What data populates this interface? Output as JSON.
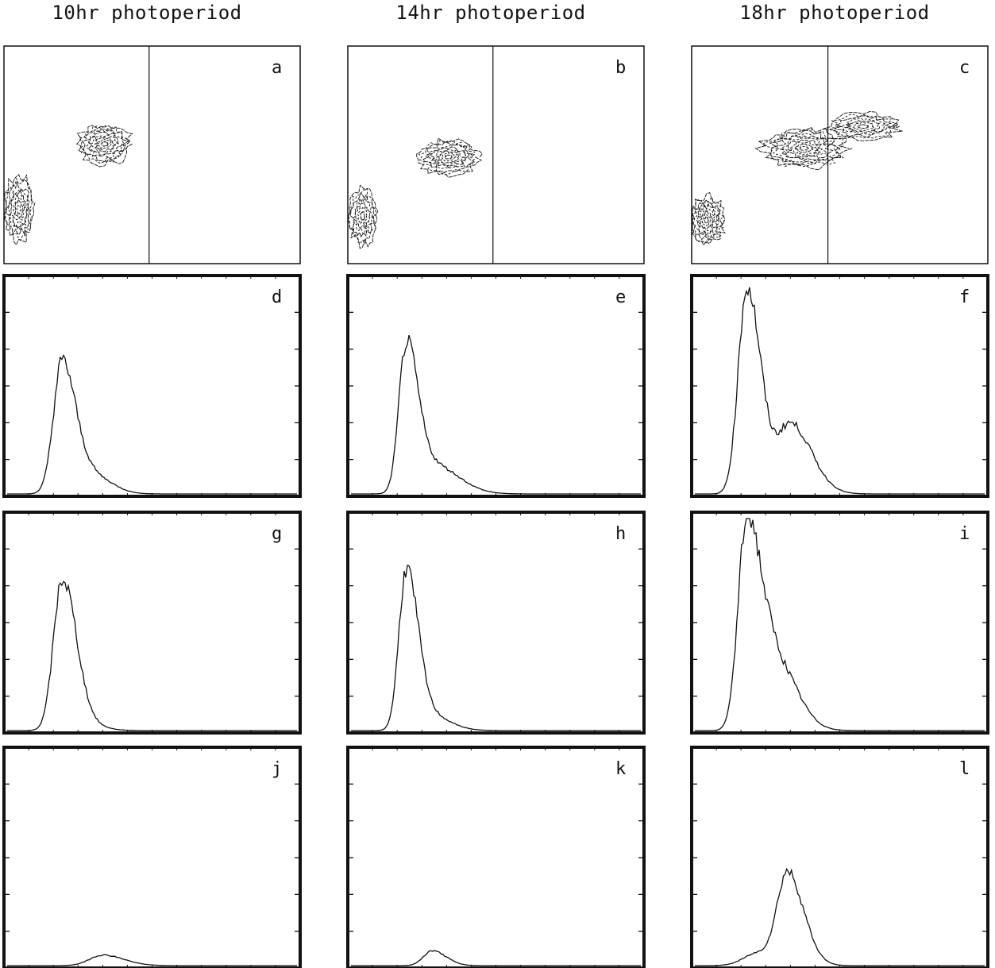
{
  "column_titles": [
    "10hr photoperiod",
    "14hr photoperiod",
    "18hr photoperiod"
  ],
  "chart_data": [
    {
      "type": "contour",
      "panel": "a",
      "title": "",
      "xlabel": "",
      "ylabel": "",
      "gate_x_fraction": 0.49,
      "populations": [
        {
          "cx": 0.05,
          "cy": 0.75,
          "levels": 8,
          "spread_x": 0.05,
          "spread_y": 0.15
        },
        {
          "cx": 0.34,
          "cy": 0.45,
          "levels": 9,
          "spread_x": 0.09,
          "spread_y": 0.09
        }
      ]
    },
    {
      "type": "contour",
      "panel": "b",
      "title": "",
      "xlabel": "",
      "ylabel": "",
      "gate_x_fraction": 0.49,
      "populations": [
        {
          "cx": 0.05,
          "cy": 0.78,
          "levels": 7,
          "spread_x": 0.05,
          "spread_y": 0.13
        },
        {
          "cx": 0.34,
          "cy": 0.51,
          "levels": 9,
          "spread_x": 0.1,
          "spread_y": 0.08
        }
      ]
    },
    {
      "type": "contour",
      "panel": "c",
      "title": "",
      "xlabel": "",
      "ylabel": "",
      "gate_x_fraction": 0.46,
      "populations": [
        {
          "cx": 0.05,
          "cy": 0.8,
          "levels": 9,
          "spread_x": 0.06,
          "spread_y": 0.11
        },
        {
          "cx": 0.38,
          "cy": 0.47,
          "levels": 10,
          "spread_x": 0.14,
          "spread_y": 0.09
        },
        {
          "cx": 0.58,
          "cy": 0.37,
          "levels": 7,
          "spread_x": 0.12,
          "spread_y": 0.06
        }
      ]
    },
    {
      "type": "histogram",
      "panel": "d",
      "title": "",
      "xlabel": "",
      "ylabel": "",
      "xlim": [
        0,
        1
      ],
      "ylim": [
        0,
        1
      ],
      "peaks": [
        {
          "x": 0.19,
          "height": 0.63,
          "width": 0.03
        },
        {
          "x": 0.3,
          "height": 0.08,
          "width": 0.04
        }
      ]
    },
    {
      "type": "histogram",
      "panel": "e",
      "title": "",
      "xlabel": "",
      "ylabel": "",
      "xlim": [
        0,
        1
      ],
      "ylim": [
        0,
        1
      ],
      "peaks": [
        {
          "x": 0.19,
          "height": 0.68,
          "width": 0.025
        },
        {
          "x": 0.28,
          "height": 0.14,
          "width": 0.055
        }
      ]
    },
    {
      "type": "histogram",
      "panel": "f",
      "title": "",
      "xlabel": "",
      "ylabel": "",
      "xlim": [
        0,
        1
      ],
      "ylim": [
        0,
        1
      ],
      "peaks": [
        {
          "x": 0.18,
          "height": 0.98,
          "width": 0.03
        },
        {
          "x": 0.33,
          "height": 0.33,
          "width": 0.045
        }
      ]
    },
    {
      "type": "histogram",
      "panel": "g",
      "title": "",
      "xlabel": "",
      "ylabel": "",
      "xlim": [
        0,
        1
      ],
      "ylim": [
        0,
        1
      ],
      "peaks": [
        {
          "x": 0.19,
          "height": 0.71,
          "width": 0.03
        },
        {
          "x": 0.26,
          "height": 0.03,
          "width": 0.04
        }
      ]
    },
    {
      "type": "histogram",
      "panel": "h",
      "title": "",
      "xlabel": "",
      "ylabel": "",
      "xlim": [
        0,
        1
      ],
      "ylim": [
        0,
        1
      ],
      "peaks": [
        {
          "x": 0.19,
          "height": 0.74,
          "width": 0.025
        },
        {
          "x": 0.26,
          "height": 0.08,
          "width": 0.045
        }
      ]
    },
    {
      "type": "histogram",
      "panel": "i",
      "title": "",
      "xlabel": "",
      "ylabel": "",
      "xlim": [
        0,
        1
      ],
      "ylim": [
        0,
        1
      ],
      "peaks": [
        {
          "x": 0.18,
          "height": 1.0,
          "width": 0.03
        },
        {
          "x": 0.28,
          "height": 0.32,
          "width": 0.045
        }
      ]
    },
    {
      "type": "histogram",
      "panel": "j",
      "title": "",
      "xlabel": "",
      "ylabel": "",
      "xlim": [
        0,
        1
      ],
      "ylim": [
        0,
        1
      ],
      "peaks": [
        {
          "x": 0.33,
          "height": 0.05,
          "width": 0.045
        }
      ]
    },
    {
      "type": "histogram",
      "panel": "k",
      "title": "",
      "xlabel": "",
      "ylabel": "",
      "xlim": [
        0,
        1
      ],
      "ylim": [
        0,
        1
      ],
      "peaks": [
        {
          "x": 0.28,
          "height": 0.07,
          "width": 0.03
        }
      ]
    },
    {
      "type": "histogram",
      "panel": "l",
      "title": "",
      "xlabel": "",
      "ylabel": "",
      "xlim": [
        0,
        1
      ],
      "ylim": [
        0,
        1
      ],
      "peaks": [
        {
          "x": 0.32,
          "height": 0.42,
          "width": 0.035
        },
        {
          "x": 0.22,
          "height": 0.06,
          "width": 0.05
        }
      ]
    }
  ]
}
